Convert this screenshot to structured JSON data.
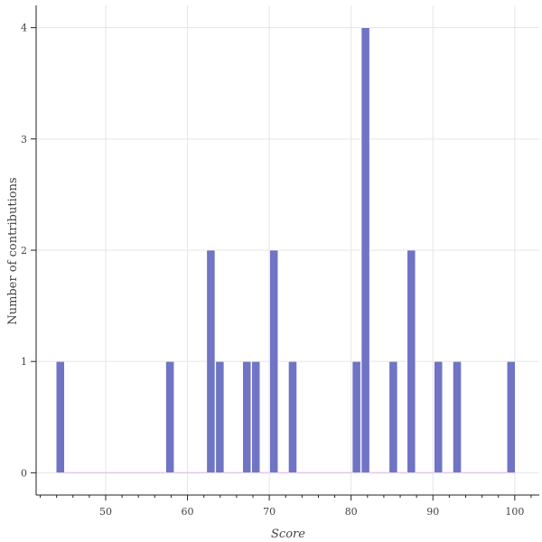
{
  "chart_data": {
    "type": "bar",
    "xlabel": "Score",
    "ylabel": "Number of contributions",
    "xlim": [
      41.5,
      103
    ],
    "ylim": [
      -0.2,
      4.2
    ],
    "x_ticks": [
      50,
      60,
      70,
      80,
      90,
      100
    ],
    "y_ticks": [
      0,
      1,
      2,
      3,
      4
    ],
    "grid": true,
    "bin_width": 1.11,
    "bar_color": "#7074c4",
    "baseline_color": "#e6c6ea",
    "bins": [
      {
        "x_start": 43.9,
        "count": 1
      },
      {
        "x_start": 57.3,
        "count": 1
      },
      {
        "x_start": 62.3,
        "count": 2
      },
      {
        "x_start": 63.4,
        "count": 1
      },
      {
        "x_start": 66.7,
        "count": 1
      },
      {
        "x_start": 67.8,
        "count": 1
      },
      {
        "x_start": 70.0,
        "count": 2
      },
      {
        "x_start": 72.3,
        "count": 1
      },
      {
        "x_start": 80.1,
        "count": 1
      },
      {
        "x_start": 81.2,
        "count": 4
      },
      {
        "x_start": 84.6,
        "count": 1
      },
      {
        "x_start": 86.8,
        "count": 2
      },
      {
        "x_start": 90.1,
        "count": 1
      },
      {
        "x_start": 92.4,
        "count": 1
      },
      {
        "x_start": 99.0,
        "count": 1
      }
    ]
  }
}
